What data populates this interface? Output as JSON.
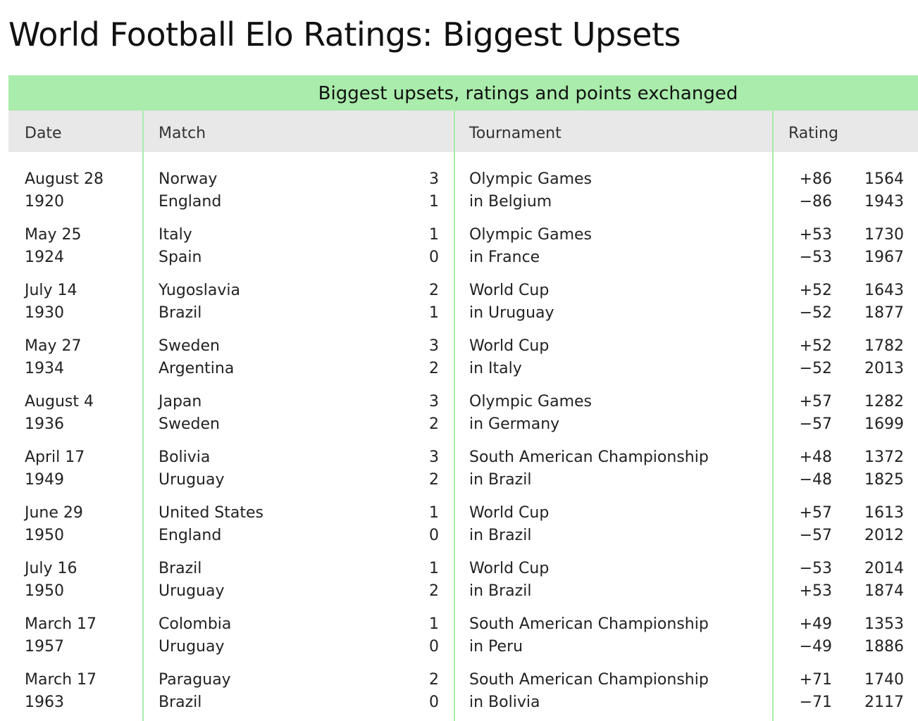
{
  "page": {
    "title": "World Football Elo Ratings: Biggest Upsets"
  },
  "table": {
    "caption": "Biggest upsets, ratings and points exchanged",
    "headers": {
      "date": "Date",
      "match": "Match",
      "tournament": "Tournament",
      "rating": "Rating"
    },
    "rows": [
      {
        "date": "August 28",
        "year": "1920",
        "team1": "Norway",
        "team2": "England",
        "score1": "3",
        "score2": "1",
        "tournament": "Olympic Games",
        "location": "in Belgium",
        "change1": "+86",
        "change2": "−86",
        "rating1": "1564",
        "rating2": "1943"
      },
      {
        "date": "May 25",
        "year": "1924",
        "team1": "Italy",
        "team2": "Spain",
        "score1": "1",
        "score2": "0",
        "tournament": "Olympic Games",
        "location": "in France",
        "change1": "+53",
        "change2": "−53",
        "rating1": "1730",
        "rating2": "1967"
      },
      {
        "date": "July 14",
        "year": "1930",
        "team1": "Yugoslavia",
        "team2": "Brazil",
        "score1": "2",
        "score2": "1",
        "tournament": "World Cup",
        "location": "in Uruguay",
        "change1": "+52",
        "change2": "−52",
        "rating1": "1643",
        "rating2": "1877"
      },
      {
        "date": "May 27",
        "year": "1934",
        "team1": "Sweden",
        "team2": "Argentina",
        "score1": "3",
        "score2": "2",
        "tournament": "World Cup",
        "location": "in Italy",
        "change1": "+52",
        "change2": "−52",
        "rating1": "1782",
        "rating2": "2013"
      },
      {
        "date": "August 4",
        "year": "1936",
        "team1": "Japan",
        "team2": "Sweden",
        "score1": "3",
        "score2": "2",
        "tournament": "Olympic Games",
        "location": "in Germany",
        "change1": "+57",
        "change2": "−57",
        "rating1": "1282",
        "rating2": "1699"
      },
      {
        "date": "April 17",
        "year": "1949",
        "team1": "Bolivia",
        "team2": "Uruguay",
        "score1": "3",
        "score2": "2",
        "tournament": "South American Championship",
        "location": "in Brazil",
        "change1": "+48",
        "change2": "−48",
        "rating1": "1372",
        "rating2": "1825"
      },
      {
        "date": "June 29",
        "year": "1950",
        "team1": "United States",
        "team2": "England",
        "score1": "1",
        "score2": "0",
        "tournament": "World Cup",
        "location": "in Brazil",
        "change1": "+57",
        "change2": "−57",
        "rating1": "1613",
        "rating2": "2012"
      },
      {
        "date": "July 16",
        "year": "1950",
        "team1": "Brazil",
        "team2": "Uruguay",
        "score1": "1",
        "score2": "2",
        "tournament": "World Cup",
        "location": "in Brazil",
        "change1": "−53",
        "change2": "+53",
        "rating1": "2014",
        "rating2": "1874"
      },
      {
        "date": "March 17",
        "year": "1957",
        "team1": "Colombia",
        "team2": "Uruguay",
        "score1": "1",
        "score2": "0",
        "tournament": "South American Championship",
        "location": "in Peru",
        "change1": "+49",
        "change2": "−49",
        "rating1": "1353",
        "rating2": "1886"
      },
      {
        "date": "March 17",
        "year": "1963",
        "team1": "Paraguay",
        "team2": "Brazil",
        "score1": "2",
        "score2": "0",
        "tournament": "South American Championship",
        "location": "in Bolivia",
        "change1": "+71",
        "change2": "−71",
        "rating1": "1740",
        "rating2": "2117"
      }
    ]
  },
  "colors": {
    "accent_green": "#a9ecab",
    "header_gray": "#e8e8e8",
    "text": "#222222"
  }
}
